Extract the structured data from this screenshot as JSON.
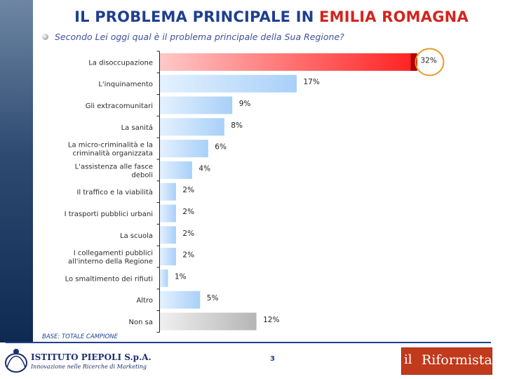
{
  "header": {
    "title_main": "IL PROBLEMA PRINCIPALE IN ",
    "title_accent": "EMILIA ROMAGNA",
    "question": "Secondo Lei oggi qual è il problema principale della Sua Regione?"
  },
  "chart_data": {
    "type": "bar",
    "orientation": "horizontal",
    "categories": [
      [
        "La disoccupazione"
      ],
      [
        "L'inquinamento"
      ],
      [
        "Gli extracomunitari"
      ],
      [
        "La sanitá"
      ],
      [
        "La micro-criminalità e la",
        "criminalità organizzata"
      ],
      [
        "L'assistenza alle fasce",
        "deboli"
      ],
      [
        "Il traffico e la viabilità"
      ],
      [
        "I trasporti pubblici urbani"
      ],
      [
        "La scuola"
      ],
      [
        "I collegamenti pubblici",
        "all'interno della Regione"
      ],
      [
        "Lo smaltimento dei rifiuti"
      ],
      [
        "Altro"
      ],
      [
        "Non sa"
      ]
    ],
    "values": [
      32,
      17,
      9,
      8,
      6,
      4,
      2,
      2,
      2,
      2,
      1,
      5,
      12
    ],
    "value_labels": [
      "32%",
      "17%",
      "9%",
      "8%",
      "6%",
      "4%",
      "2%",
      "2%",
      "2%",
      "2%",
      "1%",
      "5%",
      "12%"
    ],
    "unit": "%",
    "xlim": [
      0,
      32
    ],
    "highlight_index": 0,
    "colors": {
      "highlight": "#ff1f1f",
      "highlight_light": "#ffc8c8",
      "bar": "#a8d0f8",
      "bar_light": "#e4f1ff",
      "other": "#b5b5b5",
      "other_light": "#f0f0f0",
      "circle": "#e89a2a",
      "axis": "#222222",
      "label": "#2a2a2a"
    }
  },
  "footer": {
    "base_note": "BASE: TOTALE CAMPIONE",
    "page_number": "3",
    "left_logo_name": "ISTITUTO PIEPOLI S.p.A.",
    "left_logo_tagline": "Innovazione nelle Ricerche di Marketing",
    "right_logo_prefix": "il",
    "right_logo_name": "Riformista"
  }
}
